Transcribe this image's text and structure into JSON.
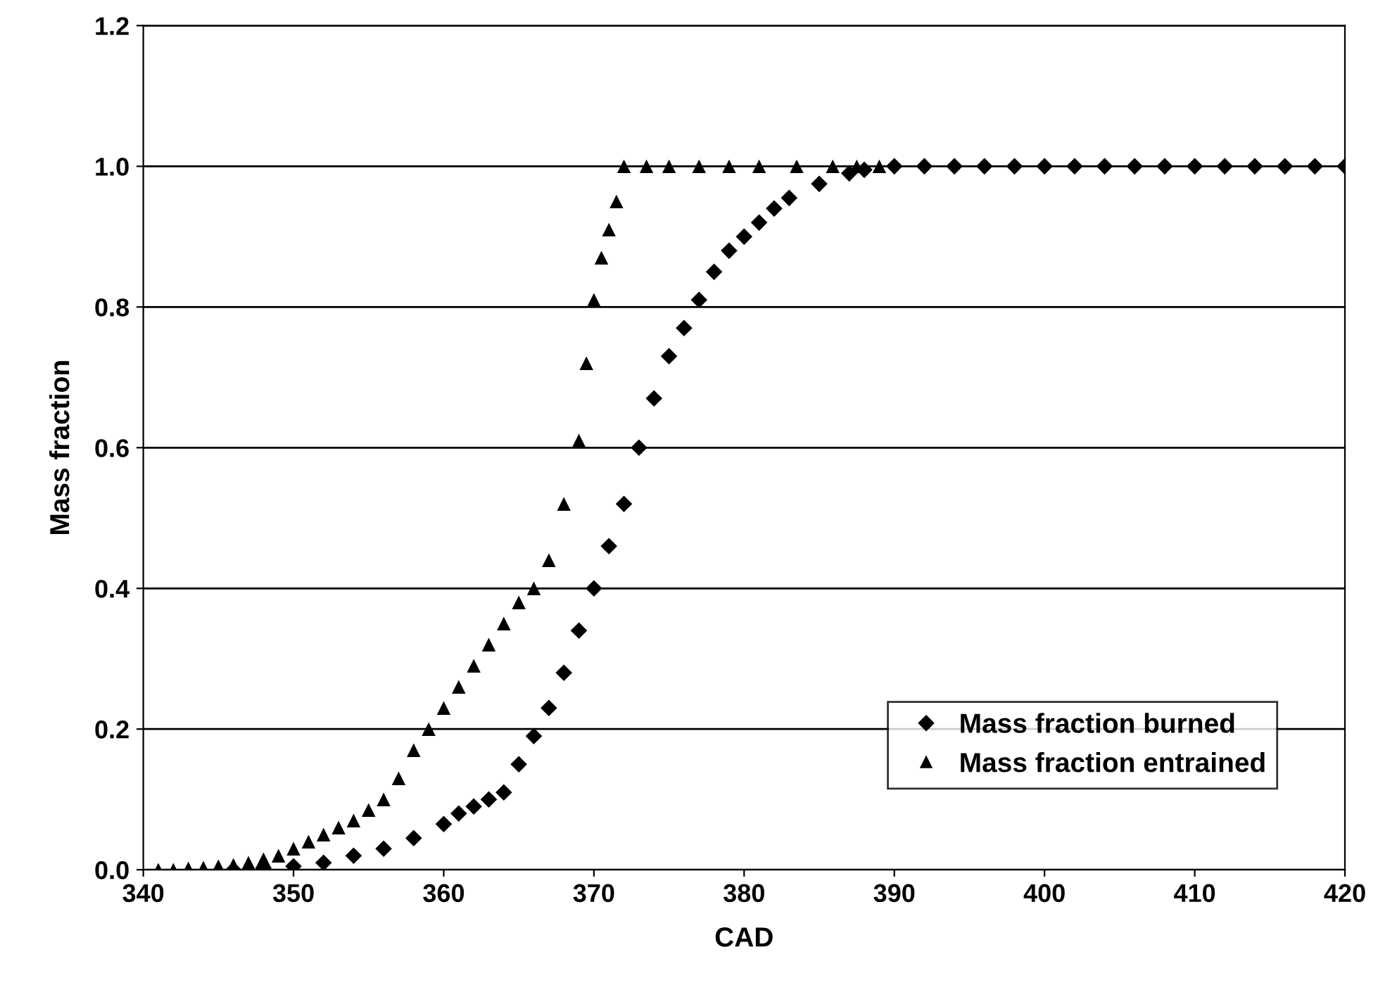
{
  "chart_data": {
    "type": "scatter",
    "xlabel": "CAD",
    "ylabel": "Mass fraction",
    "xlim": [
      340,
      420
    ],
    "xticks": [
      340,
      350,
      360,
      370,
      380,
      390,
      400,
      410,
      420
    ],
    "ylim": [
      0,
      1.2
    ],
    "yticks": [
      {
        "value": 0,
        "label": "0.0"
      },
      {
        "value": 0.2,
        "label": "0.2"
      },
      {
        "value": 0.4,
        "label": "0.4"
      },
      {
        "value": 0.6,
        "label": "0.6"
      },
      {
        "value": 0.8,
        "label": "0.8"
      },
      {
        "value": 1,
        "label": "1.0"
      },
      {
        "value": 1.2,
        "label": "1.2"
      }
    ],
    "grid": "y",
    "legend": "bottom right",
    "series": [
      {
        "name": "Mass fraction burned",
        "color": "#000000",
        "marker": "diamond",
        "x": [
          346,
          348,
          350,
          352,
          354,
          356,
          358,
          360,
          361,
          362,
          363,
          364,
          365,
          366,
          367,
          368,
          369,
          370,
          371,
          372,
          373,
          374,
          375,
          376,
          377,
          378,
          379,
          380,
          381,
          382,
          383,
          385,
          387,
          388,
          390,
          392,
          394,
          396,
          398,
          400,
          402,
          404,
          406,
          408,
          410,
          412,
          414,
          416,
          418,
          420
        ],
        "values": [
          0,
          0.003,
          0.005,
          0.01,
          0.02,
          0.03,
          0.045,
          0.065,
          0.08,
          0.09,
          0.1,
          0.11,
          0.15,
          0.19,
          0.23,
          0.28,
          0.34,
          0.4,
          0.46,
          0.52,
          0.6,
          0.67,
          0.73,
          0.77,
          0.81,
          0.85,
          0.88,
          0.9,
          0.92,
          0.94,
          0.955,
          0.975,
          0.99,
          0.995,
          1.0,
          1.0,
          1.0,
          1.0,
          1.0,
          1.0,
          1.0,
          1.0,
          1.0,
          1.0,
          1.0,
          1.0,
          1.0,
          1.0,
          1.0,
          1.0
        ]
      },
      {
        "name": "Mass fraction entrained",
        "color": "#000000",
        "marker": "triangle",
        "x": [
          341,
          342,
          343,
          344,
          345,
          346,
          347,
          348,
          349,
          350,
          351,
          352,
          353,
          354,
          355,
          356,
          357,
          358,
          359,
          360,
          361,
          362,
          363,
          364,
          365,
          366,
          367,
          368,
          369,
          369.5,
          370,
          370.5,
          371,
          371.5,
          372,
          373.5,
          375,
          377,
          379,
          381,
          383.5,
          385.9,
          387.5,
          389
        ],
        "values": [
          0,
          0,
          0.002,
          0.003,
          0.005,
          0.007,
          0.01,
          0.015,
          0.02,
          0.03,
          0.04,
          0.05,
          0.06,
          0.07,
          0.085,
          0.1,
          0.13,
          0.17,
          0.2,
          0.23,
          0.26,
          0.29,
          0.32,
          0.35,
          0.38,
          0.4,
          0.44,
          0.52,
          0.61,
          0.72,
          0.81,
          0.87,
          0.91,
          0.95,
          1.0,
          1.0,
          1.0,
          1.0,
          1.0,
          1.0,
          1.0,
          1.0,
          1.0,
          1.0
        ]
      }
    ]
  }
}
